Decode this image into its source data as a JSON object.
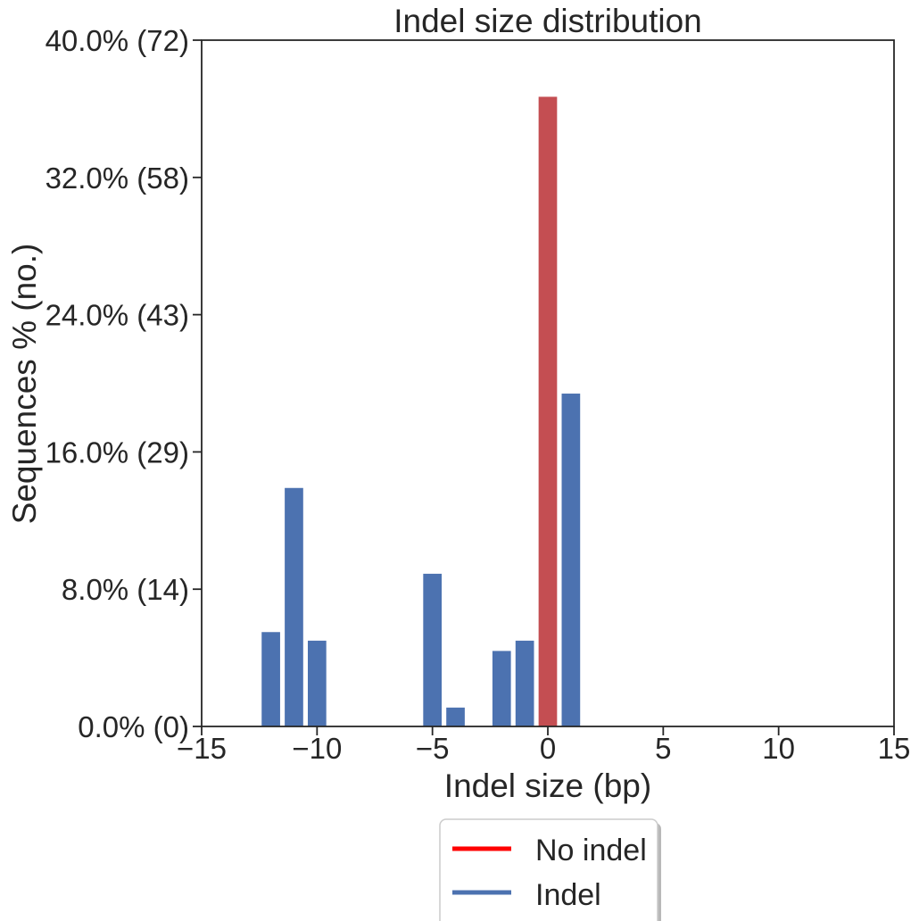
{
  "chart_data": {
    "type": "bar",
    "title": "Indel size distribution",
    "xlabel": "Indel size (bp)",
    "ylabel": "Sequences % (no.)",
    "xlim": [
      -15,
      15
    ],
    "ylim": [
      0,
      40
    ],
    "xticks": [
      -15,
      -10,
      -5,
      0,
      5,
      10,
      15
    ],
    "xtick_labels": [
      "−15",
      "−10",
      "−5",
      "0",
      "5",
      "10",
      "15"
    ],
    "yticks": [
      0,
      8,
      16,
      24,
      32,
      40
    ],
    "ytick_labels": [
      "0.0% (0)",
      "8.0% (14)",
      "16.0% (29)",
      "24.0% (43)",
      "32.0% (58)",
      "40.0% (72)"
    ],
    "grid": false,
    "legend_position": "bottom-center",
    "series": [
      {
        "name": "No indel",
        "color": "#c44e52",
        "legend_color": "#ff0000",
        "x": [
          0
        ],
        "values": [
          36.7
        ]
      },
      {
        "name": "Indel",
        "color": "#4c72b0",
        "legend_color": "#4c72b0",
        "x": [
          -12,
          -11,
          -10,
          -5,
          -4,
          -2,
          -1,
          1
        ],
        "values": [
          5.5,
          13.9,
          5.0,
          8.9,
          1.1,
          4.4,
          5.0,
          19.4
        ]
      }
    ]
  }
}
